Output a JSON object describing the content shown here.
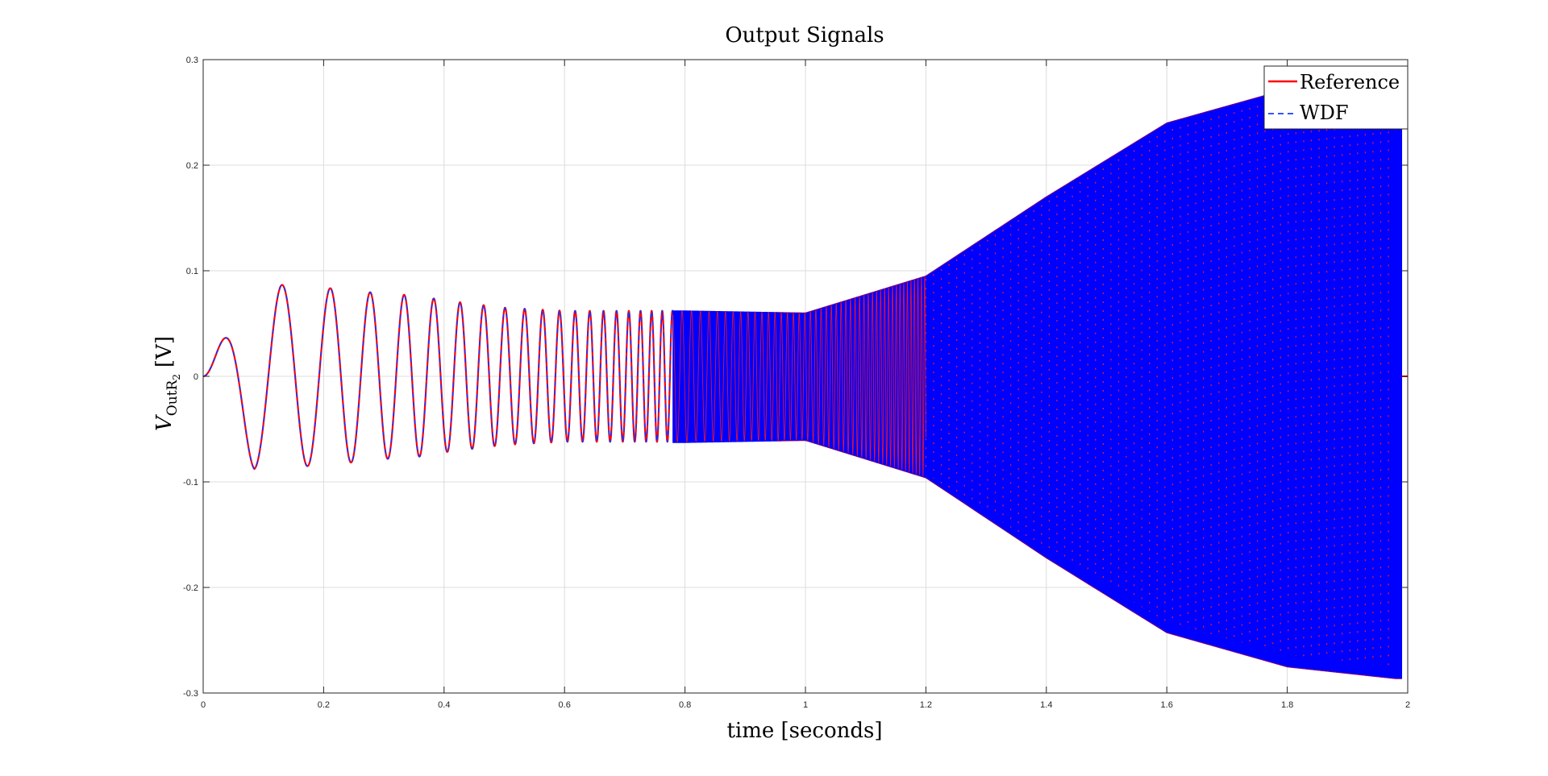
{
  "chart_data": {
    "type": "line",
    "title": "Output Signals",
    "xlabel": "time [seconds]",
    "ylabel": {
      "symbol": "V",
      "subscript": "OutR",
      "sub_subscript": "2",
      "unit": "[V]"
    },
    "xlim": [
      0,
      2
    ],
    "ylim": [
      -0.3,
      0.3
    ],
    "x_ticks": [
      0,
      0.2,
      0.4,
      0.6,
      0.8,
      1,
      1.2,
      1.4,
      1.6,
      1.8,
      2
    ],
    "x_tick_labels": [
      "0",
      "0.2",
      "0.4",
      "0.6",
      "0.8",
      "1",
      "1.2",
      "1.4",
      "1.6",
      "1.8",
      "2"
    ],
    "y_ticks": [
      -0.3,
      -0.2,
      -0.1,
      0,
      0.1,
      0.2,
      0.3
    ],
    "y_tick_labels": [
      "-0.3",
      "-0.2",
      "-0.1",
      "0",
      "0.1",
      "0.2",
      "0.3"
    ],
    "grid": true,
    "legend_position": "top-right",
    "series": [
      {
        "name": "Reference",
        "color": "#ff0000",
        "style": "solid",
        "description_points": {
          "x": [
            0.025,
            0.085,
            0.15,
            0.2,
            0.24,
            0.27,
            0.31,
            0.34,
            0.36,
            0.38,
            0.4,
            0.5,
            0.6,
            0.8,
            1.0,
            1.2,
            1.4,
            1.6,
            1.8,
            1.98
          ],
          "envelope_max": [
            0.027,
            0.0,
            0.086,
            0.0,
            0.082,
            0.0,
            0.078,
            0.0,
            0.076,
            0.0,
            0.072,
            0.065,
            0.062,
            0.062,
            0.058,
            0.092,
            0.17,
            0.235,
            0.268,
            0.28
          ],
          "envelope_min": [
            0.0,
            -0.088,
            0.0,
            -0.084,
            0.0,
            -0.08,
            0.0,
            -0.077,
            0.0,
            -0.074,
            -0.072,
            -0.065,
            -0.062,
            -0.062,
            -0.06,
            -0.095,
            -0.17,
            -0.24,
            -0.272,
            -0.283
          ]
        }
      },
      {
        "name": "WDF",
        "color": "#0000ff",
        "style": "dashed"
      }
    ]
  }
}
